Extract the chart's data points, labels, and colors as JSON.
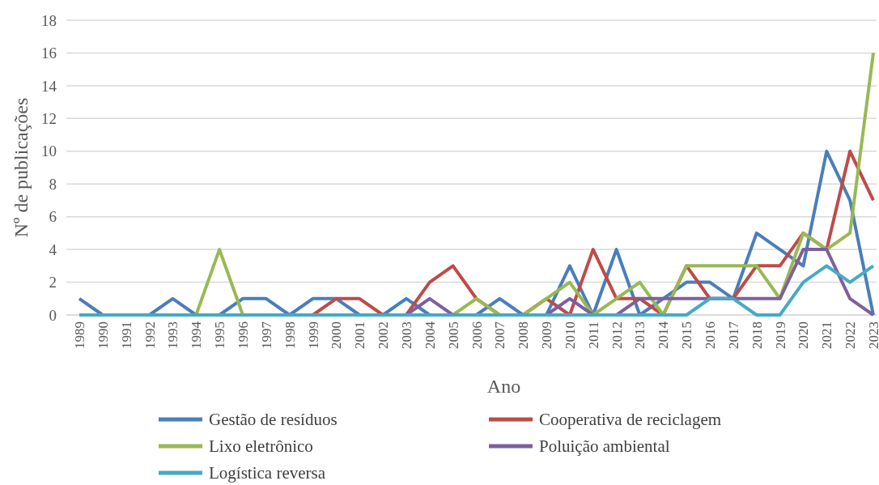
{
  "chart_data": {
    "type": "line",
    "xlabel": "Ano",
    "ylabel": "Nº de publicações",
    "categories": [
      "1989",
      "1990",
      "1991",
      "1992",
      "1993",
      "1994",
      "1995",
      "1996",
      "1997",
      "1998",
      "1999",
      "2000",
      "2001",
      "2002",
      "2003",
      "2004",
      "2005",
      "2006",
      "2007",
      "2008",
      "2009",
      "2010",
      "2011",
      "2012",
      "2013",
      "2014",
      "2015",
      "2016",
      "2017",
      "2018",
      "2019",
      "2020",
      "2021",
      "2022",
      "2023"
    ],
    "series": [
      {
        "name": "Gestão de resíduos",
        "color": "#4a7ebb",
        "values": [
          1,
          0,
          0,
          0,
          1,
          0,
          0,
          1,
          1,
          0,
          1,
          1,
          0,
          0,
          1,
          0,
          0,
          0,
          1,
          0,
          0,
          3,
          0,
          4,
          0,
          1,
          2,
          2,
          1,
          5,
          4,
          3,
          10,
          7,
          0
        ]
      },
      {
        "name": "Cooperativa de reciclagem",
        "color": "#be4b48",
        "values": [
          null,
          null,
          null,
          null,
          null,
          null,
          null,
          null,
          null,
          0,
          0,
          1,
          1,
          0,
          0,
          2,
          3,
          1,
          0,
          0,
          1,
          0,
          4,
          1,
          1,
          0,
          3,
          1,
          1,
          3,
          3,
          5,
          4,
          10,
          7
        ]
      },
      {
        "name": "Lixo eletrônico",
        "color": "#98b954",
        "values": [
          null,
          null,
          null,
          null,
          0,
          0,
          4,
          0,
          0,
          0,
          0,
          0,
          0,
          0,
          0,
          0,
          0,
          1,
          0,
          0,
          1,
          2,
          0,
          1,
          2,
          0,
          3,
          3,
          3,
          3,
          1,
          5,
          4,
          5,
          16
        ]
      },
      {
        "name": "Poluição ambiental",
        "color": "#7d60a0",
        "values": [
          null,
          null,
          null,
          null,
          0,
          0,
          0,
          0,
          0,
          0,
          0,
          0,
          0,
          0,
          0,
          1,
          0,
          0,
          0,
          0,
          0,
          1,
          0,
          0,
          1,
          1,
          1,
          1,
          1,
          1,
          1,
          4,
          4,
          1,
          0
        ]
      },
      {
        "name": "Logística reversa",
        "color": "#46aac5",
        "values": [
          0,
          0,
          0,
          0,
          0,
          0,
          0,
          0,
          0,
          0,
          0,
          0,
          0,
          0,
          0,
          0,
          0,
          0,
          0,
          0,
          0,
          0,
          0,
          0,
          0,
          0,
          0,
          1,
          1,
          0,
          0,
          2,
          3,
          2,
          3
        ]
      }
    ],
    "ylim": [
      0,
      18
    ],
    "yticks": [
      0,
      2,
      4,
      6,
      8,
      10,
      12,
      14,
      16,
      18
    ],
    "grid": "y",
    "legend": "bottom",
    "marker": "none",
    "line_style": "solid"
  }
}
